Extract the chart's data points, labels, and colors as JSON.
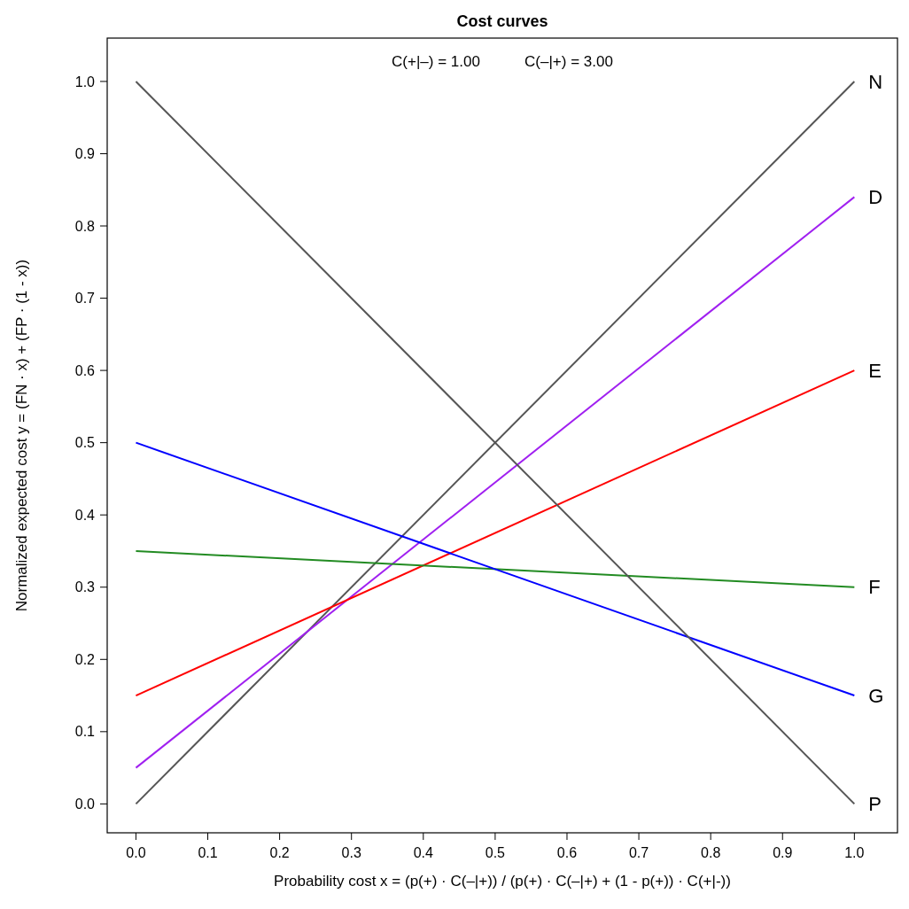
{
  "chart_data": {
    "type": "line",
    "title": "Cost curves",
    "xlabel": "Probability cost  x = (p(+) · C(–|+)) / (p(+) · C(–|+) + (1 - p(+)) · C(+|-))",
    "ylabel": "Normalized expected cost  y = (FN · x) + (FP · (1 - x))",
    "annotations": [
      "C(+|–) = 1.00",
      "C(–|+) = 3.00"
    ],
    "x": [
      0,
      1
    ],
    "series": [
      {
        "name": "N",
        "color": "#555555",
        "values": [
          0,
          1
        ]
      },
      {
        "name": "D",
        "color": "#a020f0",
        "values": [
          0.05,
          0.84
        ]
      },
      {
        "name": "E",
        "color": "#ff0000",
        "values": [
          0.15,
          0.6
        ]
      },
      {
        "name": "F",
        "color": "#228b22",
        "values": [
          0.35,
          0.3
        ]
      },
      {
        "name": "G",
        "color": "#0000ff",
        "values": [
          0.5,
          0.15
        ]
      },
      {
        "name": "P",
        "color": "#555555",
        "values": [
          1,
          0
        ]
      }
    ],
    "xlim": [
      -0.04,
      1.06
    ],
    "ylim": [
      -0.04,
      1.06
    ],
    "xticks": [
      {
        "value": 0,
        "label": "0.0"
      },
      {
        "value": 0.1,
        "label": "0.1"
      },
      {
        "value": 0.2,
        "label": "0.2"
      },
      {
        "value": 0.3,
        "label": "0.3"
      },
      {
        "value": 0.4,
        "label": "0.4"
      },
      {
        "value": 0.5,
        "label": "0.5"
      },
      {
        "value": 0.6,
        "label": "0.6"
      },
      {
        "value": 0.7,
        "label": "0.7"
      },
      {
        "value": 0.8,
        "label": "0.8"
      },
      {
        "value": 0.9,
        "label": "0.9"
      },
      {
        "value": 1,
        "label": "1.0"
      }
    ],
    "yticks": [
      {
        "value": 0,
        "label": "0.0"
      },
      {
        "value": 0.1,
        "label": "0.1"
      },
      {
        "value": 0.2,
        "label": "0.2"
      },
      {
        "value": 0.3,
        "label": "0.3"
      },
      {
        "value": 0.4,
        "label": "0.4"
      },
      {
        "value": 0.5,
        "label": "0.5"
      },
      {
        "value": 0.6,
        "label": "0.6"
      },
      {
        "value": 0.7,
        "label": "0.7"
      },
      {
        "value": 0.8,
        "label": "0.8"
      },
      {
        "value": 0.9,
        "label": "0.9"
      },
      {
        "value": 1,
        "label": "1.0"
      }
    ],
    "grid": false,
    "marker": "none",
    "line_style": "solid"
  }
}
